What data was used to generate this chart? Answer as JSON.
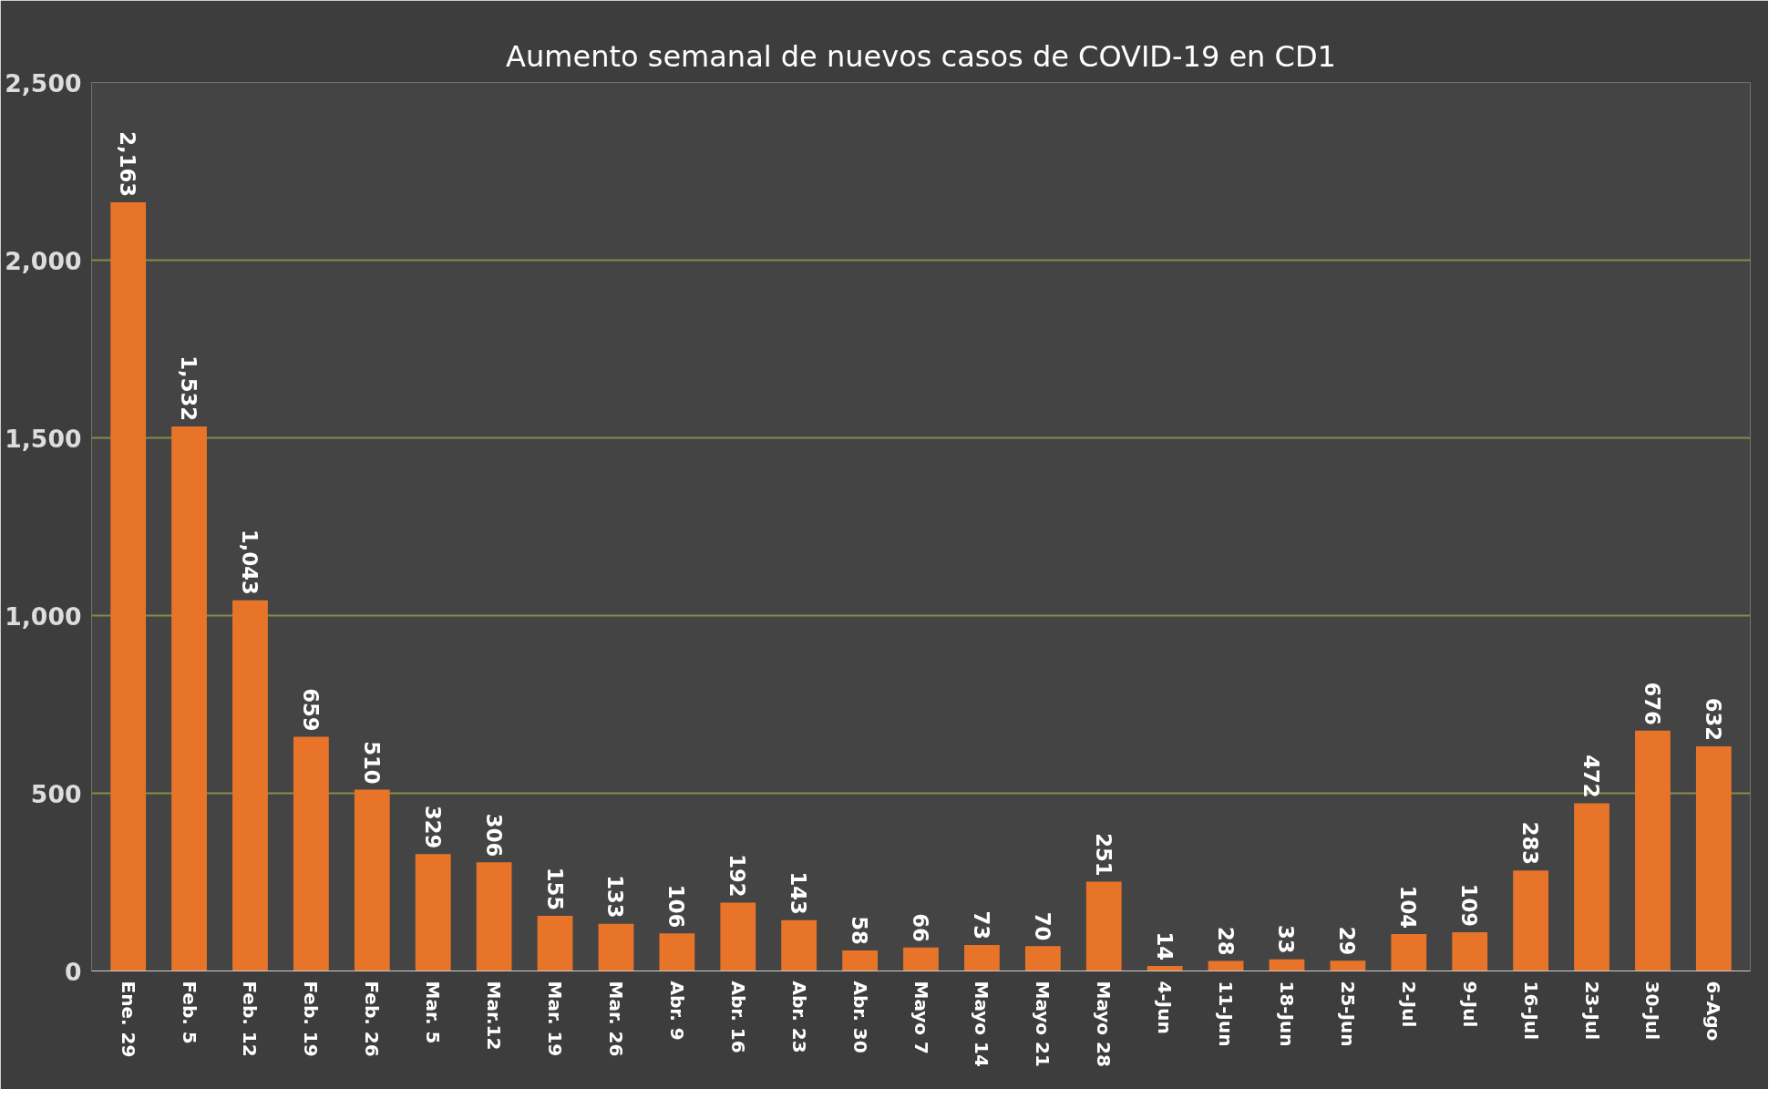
{
  "chart_data": {
    "type": "bar",
    "title": "Aumento semanal de nuevos casos de COVID-19 en CD1",
    "categories": [
      "Ene. 29",
      "Feb. 5",
      "Feb. 12",
      "Feb. 19",
      "Feb. 26",
      "Mar. 5",
      "Mar.12",
      "Mar. 19",
      "Mar. 26",
      "Abr. 9",
      "Abr. 16",
      "Abr. 23",
      "Abr. 30",
      "Mayo 7",
      "Mayo 14",
      "Mayo 21",
      "Mayo 28",
      "4-Jun",
      "11-Jun",
      "18-Jun",
      "25-Jun",
      "2-Jul",
      "9-Jul",
      "16-Jul",
      "23-Jul",
      "30-Jul",
      "6-Ago"
    ],
    "values": [
      2163,
      1532,
      1043,
      659,
      510,
      329,
      306,
      155,
      133,
      106,
      192,
      143,
      58,
      66,
      73,
      70,
      251,
      14,
      28,
      33,
      29,
      104,
      109,
      283,
      472,
      676,
      632
    ],
    "color": "#e8742a",
    "ylim": [
      0,
      2500
    ],
    "yticks": [
      {
        "value": 0,
        "label": "0"
      },
      {
        "value": 500,
        "label": "500"
      },
      {
        "value": 1000,
        "label": "1,000"
      },
      {
        "value": 1500,
        "label": "1,500"
      },
      {
        "value": 2000,
        "label": "2,000"
      },
      {
        "value": 2500,
        "label": "2,500"
      }
    ],
    "value_labels": [
      "2,163",
      "1,532",
      "1,043",
      "659",
      "510",
      "329",
      "306",
      "155",
      "133",
      "106",
      "192",
      "143",
      "58",
      "66",
      "73",
      "70",
      "251",
      "14",
      "28",
      "33",
      "29",
      "104",
      "109",
      "283",
      "472",
      "676",
      "632"
    ],
    "grid": "y"
  }
}
